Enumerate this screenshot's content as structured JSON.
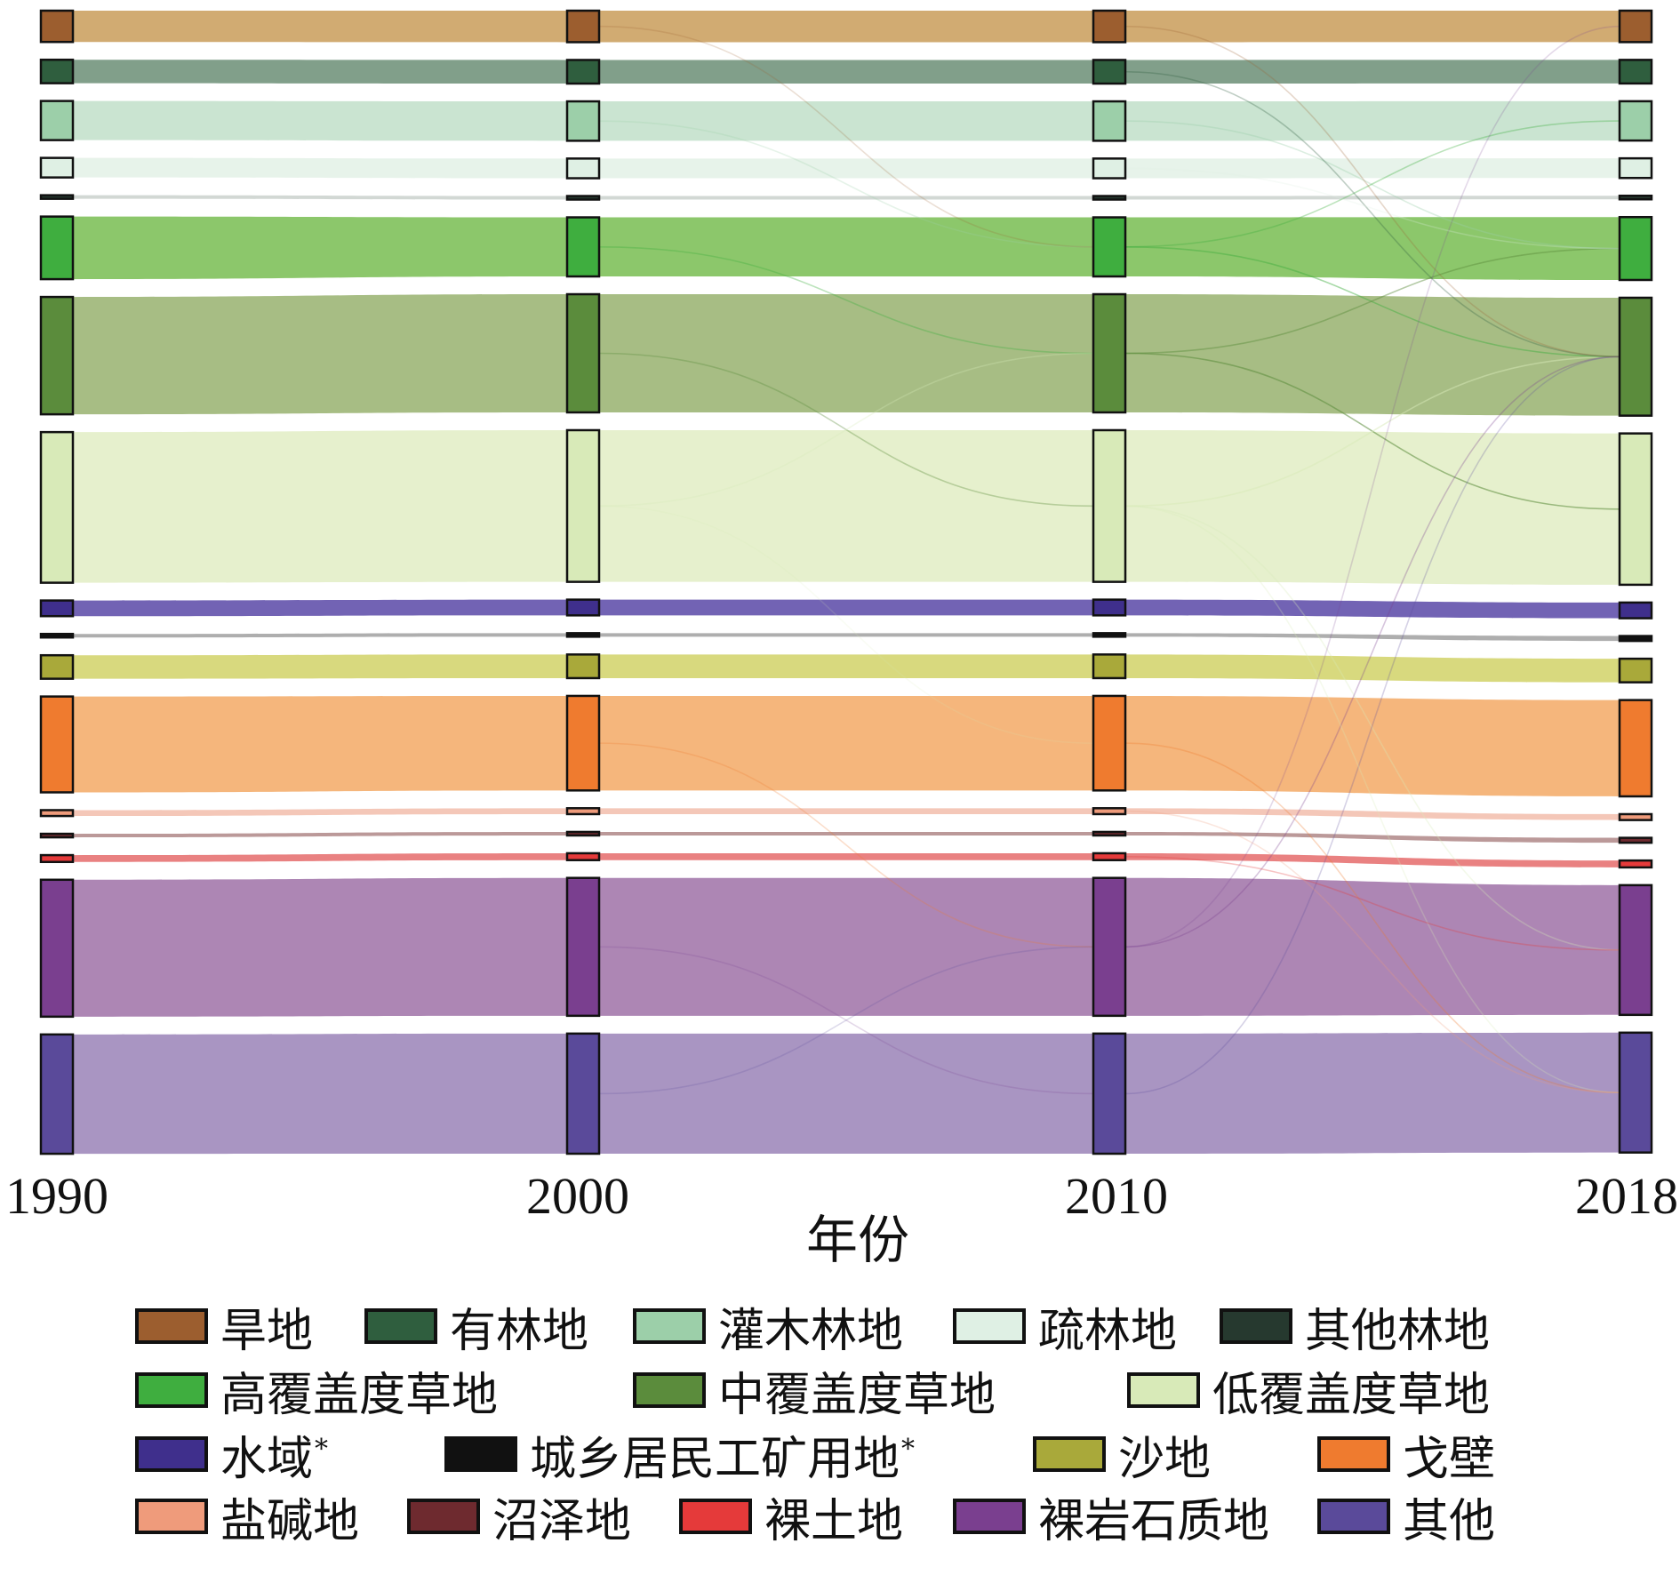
{
  "chart_data": {
    "type": "sankey",
    "title": "",
    "xlabel": "年份",
    "years": [
      "1990",
      "2000",
      "2010",
      "2018"
    ],
    "categories": [
      {
        "name": "旱地",
        "color": "#9c5e2f",
        "flow_color": "#cfa66a",
        "values": [
          1.6,
          1.6,
          1.6,
          1.6
        ]
      },
      {
        "name": "有林地",
        "color": "#2f5e3e",
        "flow_color": "#7a9a84",
        "values": [
          1.2,
          1.2,
          1.2,
          1.2
        ]
      },
      {
        "name": "灌木林地",
        "color": "#9ccfa9",
        "flow_color": "#c7e3cf",
        "values": [
          2.0,
          2.0,
          2.0,
          2.0
        ]
      },
      {
        "name": "疏林地",
        "color": "#dff0e4",
        "flow_color": "#e6f2e9",
        "values": [
          1.0,
          1.0,
          1.0,
          1.0
        ]
      },
      {
        "name": "其他林地",
        "color": "#26392f",
        "flow_color": "#d0d6d2",
        "values": [
          0.15,
          0.15,
          0.15,
          0.15
        ]
      },
      {
        "name": "高覆盖度草地",
        "color": "#3fae3f",
        "flow_color": "#86c463",
        "values": [
          3.2,
          3.0,
          3.0,
          3.2
        ]
      },
      {
        "name": "中覆盖度草地",
        "color": "#5b8c3c",
        "flow_color": "#a2b97d",
        "values": [
          6.0,
          6.0,
          6.0,
          6.0
        ]
      },
      {
        "name": "低覆盖度草地",
        "color": "#d8eab8",
        "flow_color": "#e5efca",
        "values": [
          7.7,
          7.7,
          7.7,
          7.7
        ]
      },
      {
        "name": "水域",
        "color": "#3f2f8c",
        "flow_color": "#6a5bb0",
        "values": [
          0.8,
          0.8,
          0.8,
          0.8
        ]
      },
      {
        "name": "城乡居民工矿用地",
        "color": "#111111",
        "flow_color": "#aaaaaa",
        "values": [
          0.15,
          0.15,
          0.15,
          0.25
        ]
      },
      {
        "name": "沙地",
        "color": "#a9a93a",
        "flow_color": "#d6d777",
        "values": [
          1.2,
          1.2,
          1.2,
          1.2
        ]
      },
      {
        "name": "戈壁",
        "color": "#ef7b2f",
        "flow_color": "#f4b275",
        "values": [
          4.9,
          4.8,
          4.8,
          4.9
        ]
      },
      {
        "name": "盐碱地",
        "color": "#ef9b7b",
        "flow_color": "#f3c4b4",
        "values": [
          0.3,
          0.3,
          0.3,
          0.3
        ]
      },
      {
        "name": "沼泽地",
        "color": "#6e2a2f",
        "flow_color": "#b79393",
        "values": [
          0.15,
          0.15,
          0.15,
          0.25
        ]
      },
      {
        "name": "裸土地",
        "color": "#e53a3a",
        "flow_color": "#e87a7a",
        "values": [
          0.35,
          0.35,
          0.35,
          0.35
        ]
      },
      {
        "name": "裸岩石质地",
        "color": "#7a3f8f",
        "flow_color": "#a97fb0",
        "values": [
          7.0,
          7.0,
          7.0,
          6.6
        ]
      },
      {
        "name": "其他",
        "color": "#5a4a9a",
        "flow_color": "#a48fbf",
        "values": [
          6.1,
          6.1,
          6.1,
          6.1
        ]
      }
    ],
    "legend_position": "bottom",
    "legend": [
      {
        "label": "旱地",
        "mark": ""
      },
      {
        "label": "有林地",
        "mark": ""
      },
      {
        "label": "灌木林地",
        "mark": ""
      },
      {
        "label": "疏林地",
        "mark": ""
      },
      {
        "label": "其他林地",
        "mark": ""
      },
      {
        "label": "高覆盖度草地",
        "mark": ""
      },
      {
        "label": "中覆盖度草地",
        "mark": ""
      },
      {
        "label": "低覆盖度草地",
        "mark": ""
      },
      {
        "label": "水域",
        "mark": "*"
      },
      {
        "label": "城乡居民工矿用地",
        "mark": "*"
      },
      {
        "label": "沙地",
        "mark": ""
      },
      {
        "label": "戈壁",
        "mark": ""
      },
      {
        "label": "盐碱地",
        "mark": ""
      },
      {
        "label": "沼泽地",
        "mark": ""
      },
      {
        "label": "裸土地",
        "mark": ""
      },
      {
        "label": "裸岩石质地",
        "mark": ""
      },
      {
        "label": "其他",
        "mark": ""
      }
    ]
  }
}
